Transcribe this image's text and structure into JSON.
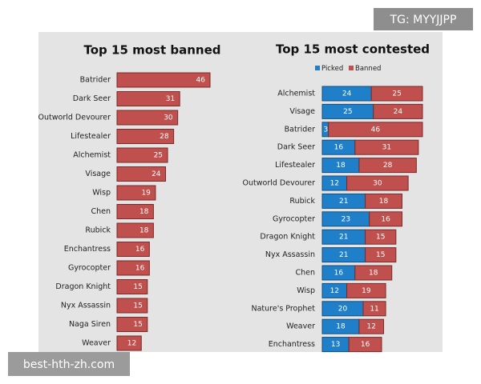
{
  "watermarks": [
    "TG: MYYJJPP",
    "best-hth-zh.com"
  ],
  "chart_data": [
    {
      "type": "bar",
      "orientation": "horizontal",
      "title": "Top 15 most banned",
      "color": "#c0504d",
      "categories": [
        "Batrider",
        "Dark Seer",
        "Outworld Devourer",
        "Lifestealer",
        "Alchemist",
        "Visage",
        "Wisp",
        "Chen",
        "Rubick",
        "Enchantress",
        "Gyrocopter",
        "Dragon Knight",
        "Nyx Assassin",
        "Naga Siren",
        "Weaver"
      ],
      "values": [
        46,
        31,
        30,
        28,
        25,
        24,
        19,
        18,
        18,
        16,
        16,
        15,
        15,
        15,
        12
      ]
    },
    {
      "type": "stacked_bar",
      "orientation": "horizontal",
      "title": "Top 15 most contested",
      "legend": "top-left",
      "categories": [
        "Alchemist",
        "Visage",
        "Batrider",
        "Dark Seer",
        "Lifestealer",
        "Outworld Devourer",
        "Rubick",
        "Gyrocopter",
        "Dragon Knight",
        "Nyx Assassin",
        "Chen",
        "Wisp",
        "Nature's Prophet",
        "Weaver",
        "Enchantress"
      ],
      "series": [
        {
          "name": "Picked",
          "color": "#1f7fc9",
          "values": [
            24,
            25,
            3,
            16,
            18,
            12,
            21,
            23,
            21,
            21,
            16,
            12,
            20,
            18,
            13
          ]
        },
        {
          "name": "Banned",
          "color": "#c0504d",
          "values": [
            25,
            24,
            46,
            31,
            28,
            30,
            18,
            16,
            15,
            15,
            18,
            19,
            11,
            12,
            16
          ]
        }
      ]
    }
  ]
}
